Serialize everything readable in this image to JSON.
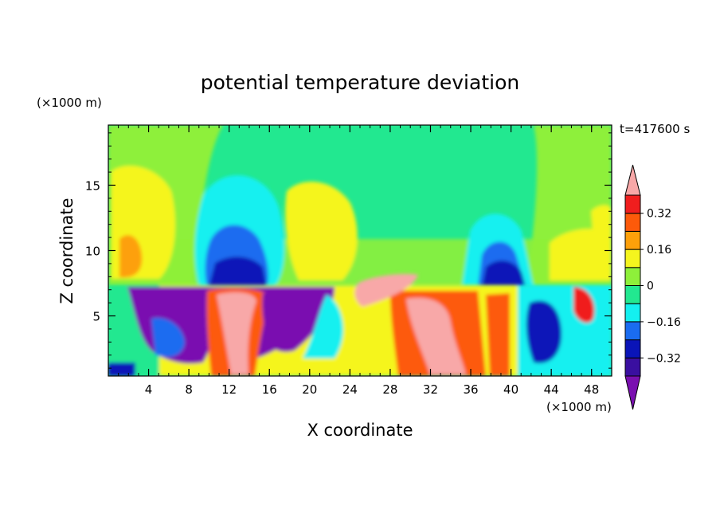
{
  "chart_data": {
    "type": "heatmap",
    "title": "potential temperature deviation",
    "xlabel": "X coordinate",
    "ylabel": "Z coordinate",
    "x_unit": "(×1000 m)",
    "y_unit": "(×1000 m)",
    "time_label": "t=417600 s",
    "xlim": [
      0,
      50
    ],
    "ylim": [
      0.4,
      19.6
    ],
    "x_ticks": [
      4,
      8,
      12,
      16,
      20,
      24,
      28,
      32,
      36,
      40,
      44,
      48
    ],
    "y_ticks": [
      5,
      10,
      15
    ],
    "colorbar": {
      "levels": [
        -0.4,
        -0.32,
        -0.24,
        -0.16,
        -0.08,
        0,
        0.08,
        0.16,
        0.24,
        0.32,
        0.4
      ],
      "tick_labels": [
        "0.32",
        "0.16",
        "0",
        "−0.16",
        "−0.32"
      ],
      "tick_values": [
        0.32,
        0.16,
        0,
        -0.16,
        -0.32
      ],
      "colors": [
        "#7a0fb0",
        "#3a0fa0",
        "#0a14b8",
        "#1a6cf0",
        "#14f0f0",
        "#22e890",
        "#8ef03a",
        "#f5f51e",
        "#fda00a",
        "#fd5a0a",
        "#f01e1e",
        "#f8a8a8"
      ],
      "extend": "both"
    },
    "grid": false
  }
}
